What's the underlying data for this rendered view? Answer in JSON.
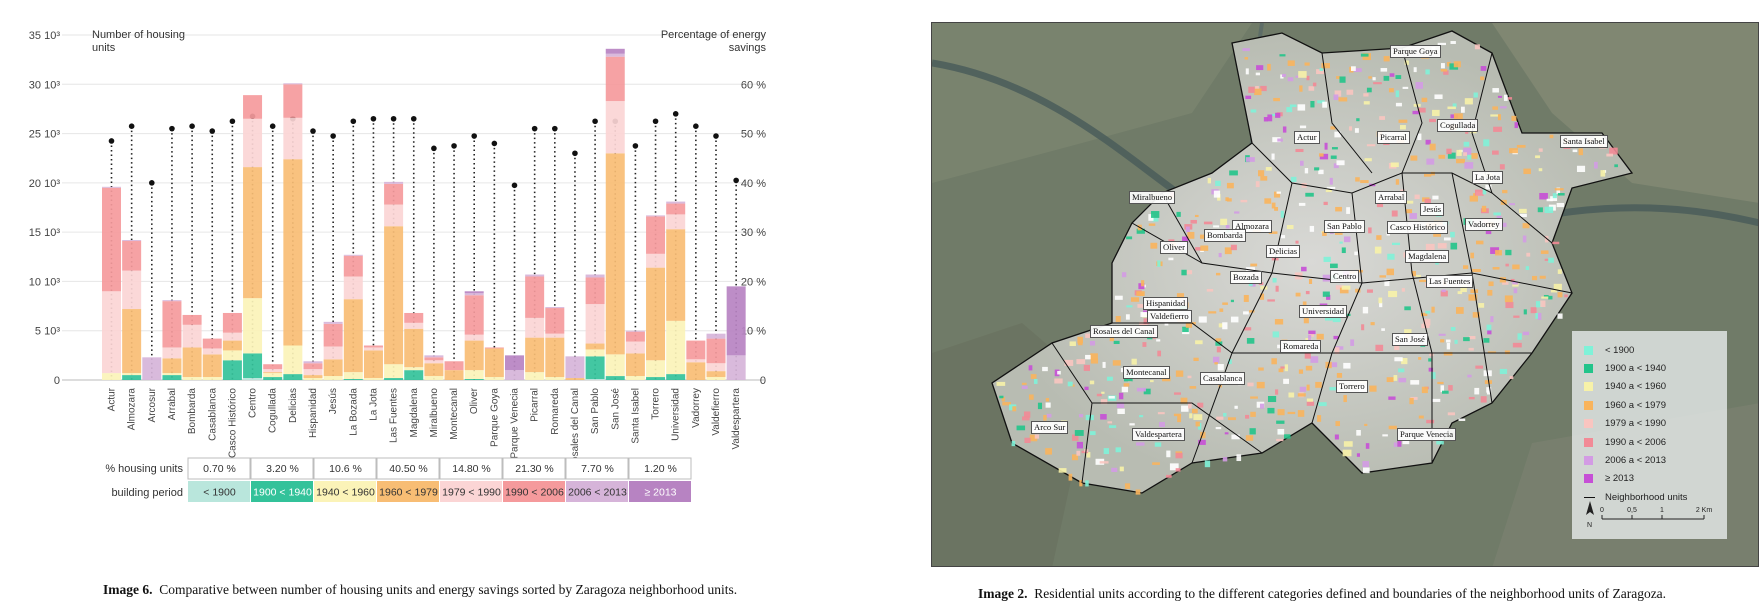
{
  "chart_data": {
    "type": "bar",
    "y_left_label": "Number of housing units",
    "y_right_label": "Percentage of energy savings",
    "y_left_ticks": [
      "0",
      "5 10³",
      "10 10³",
      "15 10³",
      "20 10³",
      "25 10³",
      "30 10³",
      "35 10³"
    ],
    "y_right_ticks": [
      "0",
      "10 %",
      "20 %",
      "30 %",
      "40 %",
      "50 %",
      "60 %"
    ],
    "ylim_left": [
      0,
      35000
    ],
    "ylim_right": [
      0,
      70
    ],
    "periods": [
      "< 1900",
      "1900 < 1940",
      "1940 < 1960",
      "1960 < 1979",
      "1979 < 1990",
      "1990 < 2006",
      "2006 < 2013",
      "≥ 2013"
    ],
    "period_colors": [
      "#b9e6dc",
      "#33c29a",
      "#fbf3b8",
      "#f8bd74",
      "#fbd5d5",
      "#f59a9c",
      "#d6b4d9",
      "#b783c2"
    ],
    "housing_units_pct": [
      "0.70 %",
      "3.20 %",
      "10.6 %",
      "40.50 %",
      "14.80 %",
      "21.30 %",
      "7.70 %",
      "1.20 %"
    ],
    "categories": [
      "Actur",
      "Almozara",
      "Arcosur",
      "Arrabal",
      "Bombarda",
      "Casablanca",
      "Casco Histórico",
      "Centro",
      "Cogullada",
      "Delicias",
      "Hispanidad",
      "Jesús",
      "La Bozada",
      "La Jota",
      "Las Fuentes",
      "Magdalena",
      "Miralbueno",
      "Montecanal",
      "Oliver",
      "Parque Goya",
      "Parque Venecia",
      "Picarral",
      "Romareda",
      "Rosales del Canal",
      "San Pablo",
      "San José",
      "Santa Isabel",
      "Torrero",
      "Universidad",
      "Vadorrey",
      "Valdefierro",
      "Valdespartera"
    ],
    "series": [
      {
        "name": "< 1900",
        "values": [
          0,
          0,
          0,
          0,
          0,
          0,
          0,
          200,
          0,
          0,
          0,
          0,
          0,
          0,
          0,
          0,
          0,
          0,
          0,
          0,
          0,
          0,
          0,
          0,
          100,
          0,
          0,
          0,
          0,
          0,
          0,
          0
        ]
      },
      {
        "name": "1900 < 1940",
        "values": [
          0,
          500,
          0,
          500,
          0,
          0,
          2000,
          2500,
          300,
          600,
          0,
          0,
          100,
          0,
          200,
          1000,
          0,
          0,
          100,
          0,
          0,
          0,
          0,
          0,
          2300,
          400,
          0,
          300,
          600,
          0,
          0,
          0
        ]
      },
      {
        "name": "1940 < 1960",
        "values": [
          700,
          200,
          0,
          200,
          300,
          300,
          1000,
          5600,
          400,
          2900,
          200,
          400,
          700,
          200,
          1400,
          300,
          400,
          0,
          900,
          300,
          0,
          800,
          300,
          0,
          700,
          2200,
          400,
          1700,
          5400,
          0,
          300,
          0
        ]
      },
      {
        "name": "1960 < 1979",
        "values": [
          0,
          6500,
          0,
          1500,
          3000,
          2300,
          1000,
          13300,
          100,
          18900,
          300,
          1700,
          7400,
          2800,
          14000,
          3900,
          1300,
          1000,
          3000,
          2900,
          0,
          3500,
          4000,
          200,
          600,
          20400,
          2300,
          9400,
          9300,
          1800,
          600,
          0
        ]
      },
      {
        "name": "1979 < 1990",
        "values": [
          8300,
          3900,
          0,
          1100,
          2300,
          600,
          800,
          4900,
          300,
          4200,
          600,
          1300,
          2300,
          300,
          2200,
          600,
          300,
          0,
          600,
          0,
          0,
          2000,
          400,
          0,
          4000,
          5300,
          1200,
          1400,
          1500,
          300,
          800,
          0
        ]
      },
      {
        "name": "1990 < 2006",
        "values": [
          10500,
          3000,
          0,
          4700,
          1000,
          1000,
          2000,
          2400,
          500,
          3400,
          600,
          2300,
          2100,
          200,
          2100,
          1000,
          300,
          900,
          4000,
          100,
          0,
          4200,
          2600,
          0,
          2700,
          4500,
          1000,
          3800,
          1100,
          1900,
          2500,
          0
        ]
      },
      {
        "name": "2006 < 2013",
        "values": [
          100,
          100,
          2300,
          100,
          0,
          0,
          0,
          0,
          0,
          100,
          200,
          200,
          100,
          0,
          200,
          0,
          200,
          0,
          200,
          0,
          1000,
          200,
          100,
          2200,
          300,
          300,
          100,
          100,
          200,
          0,
          500,
          2500
        ]
      },
      {
        "name": "≥ 2013",
        "values": [
          0,
          0,
          0,
          0,
          0,
          0,
          0,
          0,
          0,
          0,
          0,
          0,
          0,
          0,
          0,
          0,
          0,
          0,
          200,
          0,
          1500,
          0,
          0,
          0,
          0,
          500,
          0,
          0,
          0,
          0,
          0,
          7000
        ]
      }
    ],
    "energy_savings_pct": [
      48.5,
      51.5,
      40,
      51,
      51.5,
      50.5,
      52.5,
      53.5,
      51.5,
      53,
      50.5,
      49.5,
      52.5,
      53,
      53,
      53,
      47,
      47.5,
      49.5,
      48,
      39.5,
      51,
      51,
      46,
      52.5,
      52.5,
      47.5,
      52.5,
      54,
      51.5,
      49.5,
      40.5
    ]
  },
  "table": {
    "row1_label": "% housing units",
    "row2_label": "building period"
  },
  "captions": {
    "left_label": "Image 6.",
    "left_text": "Comparative between number of housing units and energy savings sorted by Zaragoza neighborhood units.",
    "right_label": "Image 2.",
    "right_text": "Residential units according to the different categories defined and boundaries of the neighborhood units of Zaragoza."
  },
  "map": {
    "legend": {
      "items": [
        {
          "label": "< 1900",
          "color": "#7ff2d8"
        },
        {
          "label": "1900 a < 1940",
          "color": "#22c48a"
        },
        {
          "label": "1940 a < 1960",
          "color": "#f7f2a8"
        },
        {
          "label": "1960 a < 1979",
          "color": "#f9b45c"
        },
        {
          "label": "1979 a < 1990",
          "color": "#f9c5c0"
        },
        {
          "label": "1990 a < 2006",
          "color": "#f28a96"
        },
        {
          "label": "2006 a < 2013",
          "color": "#d39be4"
        },
        {
          "label": "≥ 2013",
          "color": "#c64fd6"
        }
      ],
      "boundary_label": "Neighborhood units",
      "scale_ticks": [
        "0",
        "0,5",
        "1",
        "2 Km"
      ],
      "north_label": "N"
    },
    "labels": [
      "Parque Goya",
      "Actur",
      "Picarral",
      "Cogullada",
      "Santa Isabel",
      "La Jota",
      "Arrabal",
      "Jesús",
      "Vadorrey",
      "Miralbueno",
      "Almozara",
      "San Pablo",
      "Casco Histórico",
      "Bombarda",
      "Oliver",
      "Delicias",
      "Magdalena",
      "Bozada",
      "Centro",
      "Las Fuentes",
      "Hispanidad",
      "Universidad",
      "Valdefierro",
      "Rosales del Canal",
      "Romareda",
      "San José",
      "Montecanal",
      "Casablanca",
      "Torrero",
      "Arco Sur",
      "Valdespartera",
      "Parque Venecia"
    ]
  }
}
